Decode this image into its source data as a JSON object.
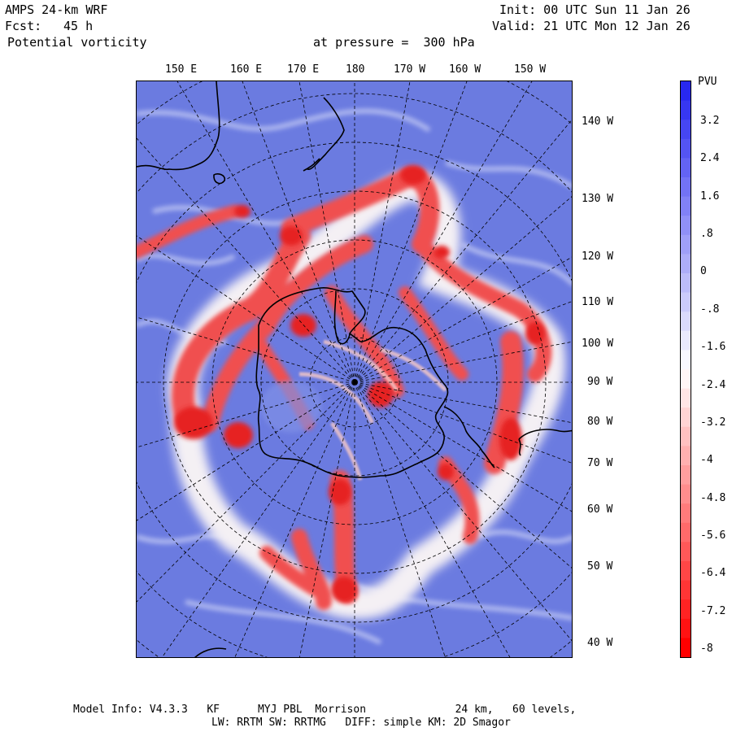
{
  "header": {
    "model_title": "AMPS 24-km WRF",
    "forecast_label": "Fcst:",
    "forecast_value": "45 h",
    "field_name": "Potential vorticity",
    "level_text": "at pressure =  300 hPa",
    "init_text": "Init: 00 UTC Sun 11 Jan 26",
    "valid_text": "Valid: 21 UTC Mon 12 Jan 26"
  },
  "map": {
    "longitude_labels": [
      "150 E",
      "160 E",
      "170 E",
      "180",
      "170 W",
      "160 W",
      "150 W"
    ],
    "latitude_labels": [
      "140 W",
      "130 W",
      "120 W",
      "110 W",
      "100 W",
      "90 W",
      "80 W",
      "70 W",
      "60 W",
      "50 W",
      "40 W"
    ],
    "colors": {
      "positive": "#2a2af0",
      "zero": "#ffffff",
      "negative": "#ff0000",
      "background": "#6f7fe0"
    }
  },
  "colorbar": {
    "unit": "PVU",
    "labels": [
      "3.2",
      "2.4",
      "1.6",
      ".8",
      "0",
      "-.8",
      "-1.6",
      "-2.4",
      "-3.2",
      "-4",
      "-4.8",
      "-5.6",
      "-6.4",
      "-7.2",
      "-8"
    ],
    "levels": 30
  },
  "footer": {
    "line1": "Model Info: V4.3.3   KF      MYJ PBL  Morrison              24 km,   60 levels,",
    "line2": "LW: RRTM SW: RRTMG   DIFF: simple KM: 2D Smagor"
  }
}
